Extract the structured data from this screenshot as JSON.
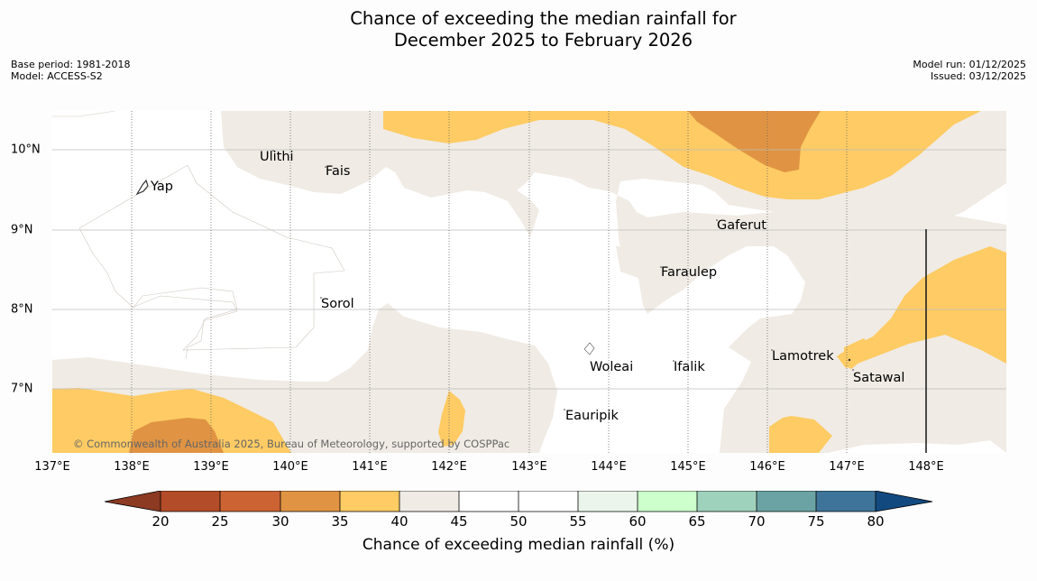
{
  "title_line1": "Chance of exceeding the median rainfall for",
  "title_line2": "December 2025 to February 2026",
  "meta": {
    "base_period": "Base period: 1981-2018",
    "model": "Model: ACCESS-S2",
    "model_run": "Model run: 01/12/2025",
    "issued": "Issued: 03/12/2025"
  },
  "axes": {
    "x_ticks": [
      "137°E",
      "138°E",
      "139°E",
      "140°E",
      "141°E",
      "142°E",
      "143°E",
      "144°E",
      "145°E",
      "146°E",
      "147°E",
      "148°E"
    ],
    "y_ticks": [
      "10°N",
      "9°N",
      "8°N",
      "7°N"
    ]
  },
  "places": {
    "ulithi": "Ulithi",
    "fais": "Fais",
    "yap": "Yap",
    "gaferut": "Gaferut",
    "faraulep": "Faraulep",
    "sorol": "Sorol",
    "lamotrek": "Lamotrek",
    "satawal": "Satawal",
    "woleai": "Woleai",
    "ifalik": "Ifalik",
    "eauripik": "Eauripik"
  },
  "copyright": "© Commonwealth of Australia 2025, Bureau of Meteorology, supported by COSPPac",
  "colorbar": {
    "ticks": [
      "20",
      "25",
      "30",
      "35",
      "40",
      "45",
      "50",
      "55",
      "60",
      "65",
      "70",
      "75",
      "80"
    ],
    "colors": {
      "below20": "#8c3a22",
      "c20_25": "#b34c28",
      "c25_30": "#cc6332",
      "c30_35": "#e09443",
      "c35_40": "#fecb64",
      "c40_45": "#f0ebe4",
      "c45_50": "#ffffff",
      "c50_55": "#ffffff",
      "c55_60": "#ebf5eb",
      "c60_65": "#ccffcc",
      "c65_70": "#9fd2bc",
      "c70_75": "#6ba3a5",
      "c75_80": "#3e7499",
      "above80": "#124a80"
    },
    "label": "Chance of exceeding median rainfall (%)"
  }
}
